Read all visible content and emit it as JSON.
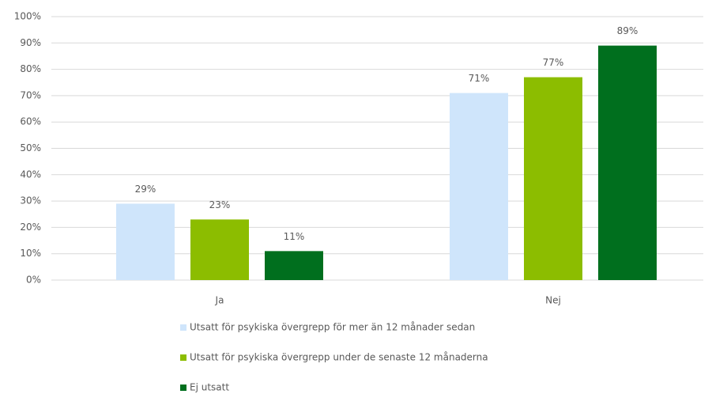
{
  "chart_data": {
    "type": "bar",
    "categories": [
      "Ja",
      "Nej"
    ],
    "series": [
      {
        "name": "Utsatt för psykiska övergrepp för mer än 12 månader sedan",
        "color": "#cfe5fb",
        "values": [
          29,
          71
        ],
        "value_labels": [
          "29%",
          "71%"
        ]
      },
      {
        "name": "Utsatt för psykiska övergrepp under de senaste 12 månaderna",
        "color": "#8cbd00",
        "values": [
          23,
          77
        ],
        "value_labels": [
          "23%",
          "77%"
        ]
      },
      {
        "name": "Ej utsatt",
        "color": "#006f1e",
        "values": [
          11,
          89
        ],
        "value_labels": [
          "11%",
          "89%"
        ]
      }
    ],
    "ylim": [
      0,
      100
    ],
    "yticks": [
      {
        "value": 0,
        "label": "0%"
      },
      {
        "value": 10,
        "label": "10%"
      },
      {
        "value": 20,
        "label": "20%"
      },
      {
        "value": 30,
        "label": "30%"
      },
      {
        "value": 40,
        "label": "40%"
      },
      {
        "value": 50,
        "label": "50%"
      },
      {
        "value": 60,
        "label": "60%"
      },
      {
        "value": 70,
        "label": "70%"
      },
      {
        "value": 80,
        "label": "80%"
      },
      {
        "value": 90,
        "label": "90%"
      },
      {
        "value": 100,
        "label": "100%"
      }
    ],
    "grid": true,
    "legend": "bottom"
  }
}
